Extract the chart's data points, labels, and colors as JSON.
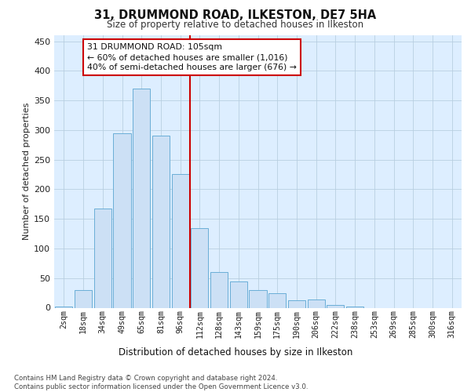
{
  "title": "31, DRUMMOND ROAD, ILKESTON, DE7 5HA",
  "subtitle": "Size of property relative to detached houses in Ilkeston",
  "xlabel": "Distribution of detached houses by size in Ilkeston",
  "ylabel": "Number of detached properties",
  "bar_labels": [
    "2sqm",
    "18sqm",
    "34sqm",
    "49sqm",
    "65sqm",
    "81sqm",
    "96sqm",
    "112sqm",
    "128sqm",
    "143sqm",
    "159sqm",
    "175sqm",
    "190sqm",
    "206sqm",
    "222sqm",
    "238sqm",
    "253sqm",
    "269sqm",
    "285sqm",
    "300sqm",
    "316sqm"
  ],
  "bar_values": [
    2,
    30,
    168,
    295,
    370,
    290,
    226,
    134,
    60,
    44,
    30,
    25,
    12,
    14,
    5,
    2,
    0,
    0,
    0,
    0,
    0
  ],
  "bar_color": "#cce0f5",
  "bar_edge_color": "#6aaed6",
  "vline_x": 7.0,
  "vline_color": "#cc0000",
  "annotation_text": "31 DRUMMOND ROAD: 105sqm\n← 60% of detached houses are smaller (1,016)\n40% of semi-detached houses are larger (676) →",
  "annotation_box_color": "#ffffff",
  "annotation_box_edge_color": "#cc0000",
  "ylim": [
    0,
    460
  ],
  "yticks": [
    0,
    50,
    100,
    150,
    200,
    250,
    300,
    350,
    400,
    450
  ],
  "footnote": "Contains HM Land Registry data © Crown copyright and database right 2024.\nContains public sector information licensed under the Open Government Licence v3.0.",
  "bg_color": "#ddeeff",
  "plot_bg": "#ffffff",
  "grid_color": "#b8cfe0"
}
